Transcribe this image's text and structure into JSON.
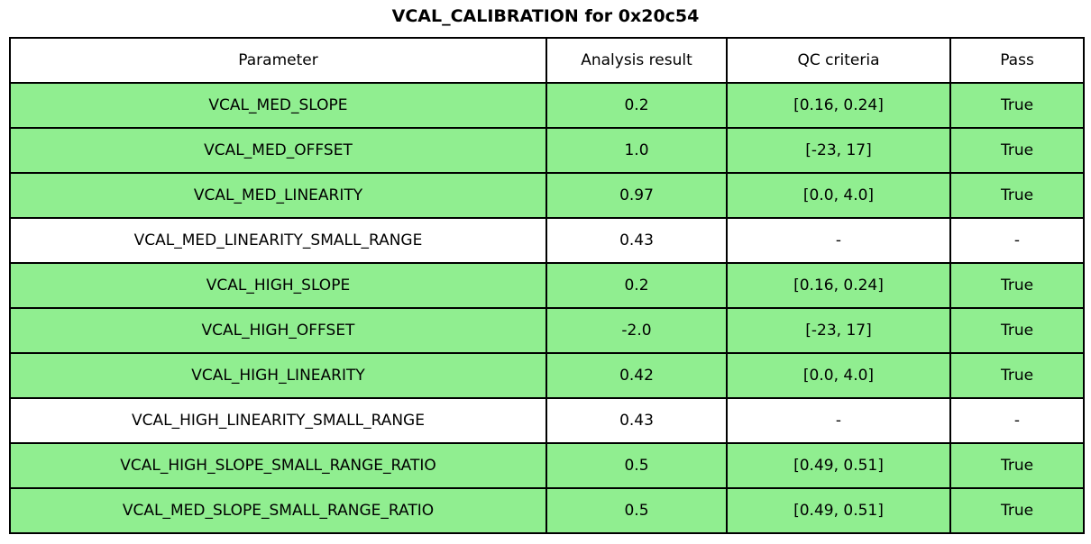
{
  "title": "VCAL_CALIBRATION for 0x20c54",
  "table": {
    "columns": [
      "Parameter",
      "Analysis result",
      "QC criteria",
      "Pass"
    ],
    "rows": [
      {
        "parameter": "VCAL_MED_SLOPE",
        "result": "0.2",
        "qc": "[0.16, 0.24]",
        "pass": "True",
        "highlight": true
      },
      {
        "parameter": "VCAL_MED_OFFSET",
        "result": "1.0",
        "qc": "[-23, 17]",
        "pass": "True",
        "highlight": true
      },
      {
        "parameter": "VCAL_MED_LINEARITY",
        "result": "0.97",
        "qc": "[0.0, 4.0]",
        "pass": "True",
        "highlight": true
      },
      {
        "parameter": "VCAL_MED_LINEARITY_SMALL_RANGE",
        "result": "0.43",
        "qc": "-",
        "pass": "-",
        "highlight": false
      },
      {
        "parameter": "VCAL_HIGH_SLOPE",
        "result": "0.2",
        "qc": "[0.16, 0.24]",
        "pass": "True",
        "highlight": true
      },
      {
        "parameter": "VCAL_HIGH_OFFSET",
        "result": "-2.0",
        "qc": "[-23, 17]",
        "pass": "True",
        "highlight": true
      },
      {
        "parameter": "VCAL_HIGH_LINEARITY",
        "result": "0.42",
        "qc": "[0.0, 4.0]",
        "pass": "True",
        "highlight": true
      },
      {
        "parameter": "VCAL_HIGH_LINEARITY_SMALL_RANGE",
        "result": "0.43",
        "qc": "-",
        "pass": "-",
        "highlight": false
      },
      {
        "parameter": "VCAL_HIGH_SLOPE_SMALL_RANGE_RATIO",
        "result": "0.5",
        "qc": "[0.49, 0.51]",
        "pass": "True",
        "highlight": true
      },
      {
        "parameter": "VCAL_MED_SLOPE_SMALL_RANGE_RATIO",
        "result": "0.5",
        "qc": "[0.49, 0.51]",
        "pass": "True",
        "highlight": true
      }
    ],
    "colors": {
      "pass_row_bg": "#90EE90",
      "neutral_row_bg": "#FFFFFF",
      "border": "#000000",
      "text": "#000000"
    }
  },
  "chart_data": {
    "type": "table",
    "title": "VCAL_CALIBRATION for 0x20c54",
    "columns": [
      "Parameter",
      "Analysis result",
      "QC criteria",
      "Pass"
    ],
    "rows": [
      [
        "VCAL_MED_SLOPE",
        "0.2",
        "[0.16, 0.24]",
        "True"
      ],
      [
        "VCAL_MED_OFFSET",
        "1.0",
        "[-23, 17]",
        "True"
      ],
      [
        "VCAL_MED_LINEARITY",
        "0.97",
        "[0.0, 4.0]",
        "True"
      ],
      [
        "VCAL_MED_LINEARITY_SMALL_RANGE",
        "0.43",
        "-",
        "-"
      ],
      [
        "VCAL_HIGH_SLOPE",
        "0.2",
        "[0.16, 0.24]",
        "True"
      ],
      [
        "VCAL_HIGH_OFFSET",
        "-2.0",
        "[-23, 17]",
        "True"
      ],
      [
        "VCAL_HIGH_LINEARITY",
        "0.42",
        "[0.0, 4.0]",
        "True"
      ],
      [
        "VCAL_HIGH_LINEARITY_SMALL_RANGE",
        "0.43",
        "-",
        "-"
      ],
      [
        "VCAL_HIGH_SLOPE_SMALL_RANGE_RATIO",
        "0.5",
        "[0.49, 0.51]",
        "True"
      ],
      [
        "VCAL_MED_SLOPE_SMALL_RANGE_RATIO",
        "0.5",
        "[0.49, 0.51]",
        "True"
      ]
    ],
    "row_highlighted": [
      true,
      true,
      true,
      false,
      true,
      true,
      true,
      false,
      true,
      true
    ],
    "highlight_color": "#90EE90",
    "layout_hints": "title centered above table; all cells center-aligned; black 2px grid borders; rows with passing QC filled light green, informational rows white"
  }
}
